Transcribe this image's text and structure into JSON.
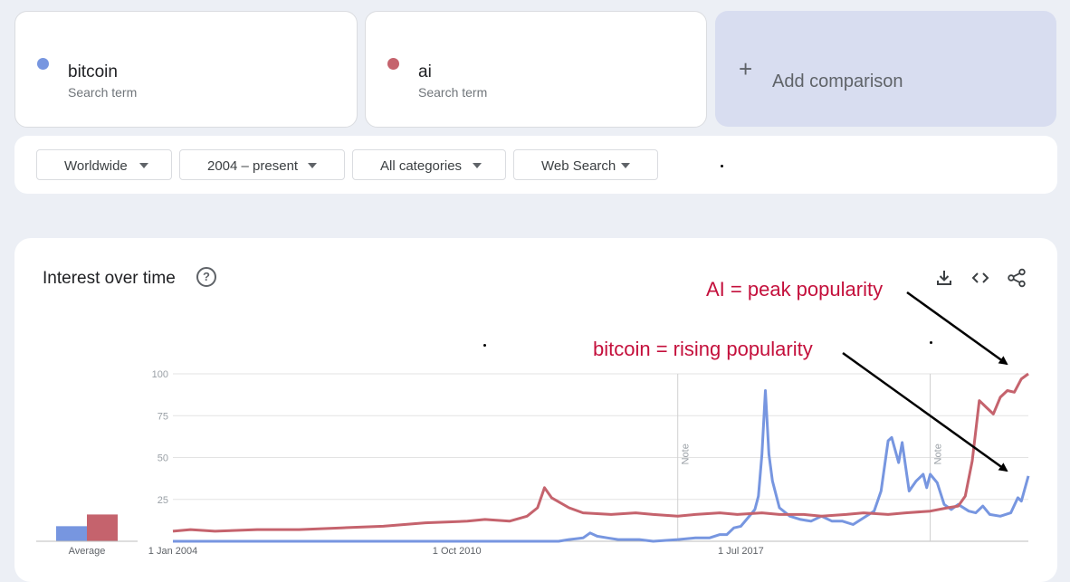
{
  "search_terms": [
    {
      "label": "bitcoin",
      "type": "Search term",
      "color": "#7796e0"
    },
    {
      "label": "ai",
      "type": "Search term",
      "color": "#c5636d"
    }
  ],
  "add_comparison": {
    "icon": "plus-icon",
    "label": "Add comparison"
  },
  "filters": [
    {
      "label": "Worldwide"
    },
    {
      "label": "2004 – present"
    },
    {
      "label": "All categories"
    },
    {
      "label": "Web Search"
    }
  ],
  "panel": {
    "title": "Interest over time",
    "icons": [
      "help-icon",
      "download-icon",
      "embed-icon",
      "share-icon"
    ]
  },
  "annotations": {
    "ai": "AI = peak popularity",
    "bitcoin": "bitcoin = rising popularity",
    "color": "#c4103c"
  },
  "chart_data": {
    "type": "line",
    "ylim": [
      0,
      100
    ],
    "yticks": [
      "100",
      "75",
      "50",
      "25"
    ],
    "xtick_labels": [
      "1 Jan 2004",
      "1 Oct 2010",
      "1 Jul 2017"
    ],
    "x_range": [
      "2004-01",
      "2024-05"
    ],
    "grid": true,
    "notes": [
      {
        "label": "Note",
        "x": "2016-01"
      },
      {
        "label": "Note",
        "x": "2022-01"
      }
    ],
    "average": {
      "label": "Average",
      "values": {
        "bitcoin": 9,
        "ai": 16
      }
    },
    "series": [
      {
        "name": "bitcoin",
        "color": "#7796e0",
        "points": [
          [
            "2004-01",
            0
          ],
          [
            "2010-01",
            0
          ],
          [
            "2012-01",
            0
          ],
          [
            "2013-03",
            0
          ],
          [
            "2013-06",
            1
          ],
          [
            "2013-10",
            2
          ],
          [
            "2013-12",
            5
          ],
          [
            "2014-02",
            3
          ],
          [
            "2014-05",
            2
          ],
          [
            "2014-08",
            1
          ],
          [
            "2014-11",
            1
          ],
          [
            "2015-02",
            1
          ],
          [
            "2015-06",
            0
          ],
          [
            "2016-01",
            1
          ],
          [
            "2016-06",
            2
          ],
          [
            "2016-10",
            2
          ],
          [
            "2017-01",
            4
          ],
          [
            "2017-03",
            4
          ],
          [
            "2017-05",
            8
          ],
          [
            "2017-07",
            9
          ],
          [
            "2017-09",
            14
          ],
          [
            "2017-11",
            19
          ],
          [
            "2017-12",
            27
          ],
          [
            "2018-01",
            52
          ],
          [
            "2018-02",
            90
          ],
          [
            "2018-03",
            52
          ],
          [
            "2018-04",
            36
          ],
          [
            "2018-06",
            20
          ],
          [
            "2018-09",
            15
          ],
          [
            "2018-12",
            13
          ],
          [
            "2019-03",
            12
          ],
          [
            "2019-06",
            15
          ],
          [
            "2019-09",
            12
          ],
          [
            "2019-12",
            12
          ],
          [
            "2020-03",
            10
          ],
          [
            "2020-06",
            14
          ],
          [
            "2020-09",
            18
          ],
          [
            "2020-11",
            30
          ],
          [
            "2021-01",
            60
          ],
          [
            "2021-02",
            62
          ],
          [
            "2021-04",
            47
          ],
          [
            "2021-05",
            59
          ],
          [
            "2021-07",
            30
          ],
          [
            "2021-09",
            36
          ],
          [
            "2021-11",
            40
          ],
          [
            "2021-12",
            32
          ],
          [
            "2022-01",
            40
          ],
          [
            "2022-03",
            35
          ],
          [
            "2022-05",
            22
          ],
          [
            "2022-07",
            19
          ],
          [
            "2022-09",
            22
          ],
          [
            "2022-12",
            18
          ],
          [
            "2023-02",
            17
          ],
          [
            "2023-04",
            21
          ],
          [
            "2023-06",
            16
          ],
          [
            "2023-09",
            15
          ],
          [
            "2023-12",
            17
          ],
          [
            "2024-02",
            26
          ],
          [
            "2024-03",
            24
          ],
          [
            "2024-05",
            39
          ]
        ]
      },
      {
        "name": "ai",
        "color": "#c5636d",
        "points": [
          [
            "2004-01",
            6
          ],
          [
            "2004-06",
            7
          ],
          [
            "2005-01",
            6
          ],
          [
            "2006-01",
            7
          ],
          [
            "2007-01",
            7
          ],
          [
            "2008-01",
            8
          ],
          [
            "2009-01",
            9
          ],
          [
            "2010-01",
            11
          ],
          [
            "2011-01",
            12
          ],
          [
            "2011-06",
            13
          ],
          [
            "2012-01",
            12
          ],
          [
            "2012-06",
            15
          ],
          [
            "2012-09",
            20
          ],
          [
            "2012-11",
            32
          ],
          [
            "2013-01",
            26
          ],
          [
            "2013-06",
            20
          ],
          [
            "2013-10",
            17
          ],
          [
            "2014-06",
            16
          ],
          [
            "2015-01",
            17
          ],
          [
            "2015-06",
            16
          ],
          [
            "2016-01",
            15
          ],
          [
            "2016-06",
            16
          ],
          [
            "2017-01",
            17
          ],
          [
            "2017-06",
            16
          ],
          [
            "2018-01",
            17
          ],
          [
            "2018-06",
            16
          ],
          [
            "2019-01",
            16
          ],
          [
            "2019-06",
            15
          ],
          [
            "2020-01",
            16
          ],
          [
            "2020-06",
            17
          ],
          [
            "2021-01",
            16
          ],
          [
            "2021-06",
            17
          ],
          [
            "2022-01",
            18
          ],
          [
            "2022-06",
            20
          ],
          [
            "2022-09",
            21
          ],
          [
            "2022-11",
            27
          ],
          [
            "2023-01",
            48
          ],
          [
            "2023-03",
            84
          ],
          [
            "2023-05",
            80
          ],
          [
            "2023-07",
            76
          ],
          [
            "2023-09",
            86
          ],
          [
            "2023-11",
            90
          ],
          [
            "2024-01",
            89
          ],
          [
            "2024-03",
            97
          ],
          [
            "2024-05",
            100
          ]
        ]
      }
    ]
  }
}
